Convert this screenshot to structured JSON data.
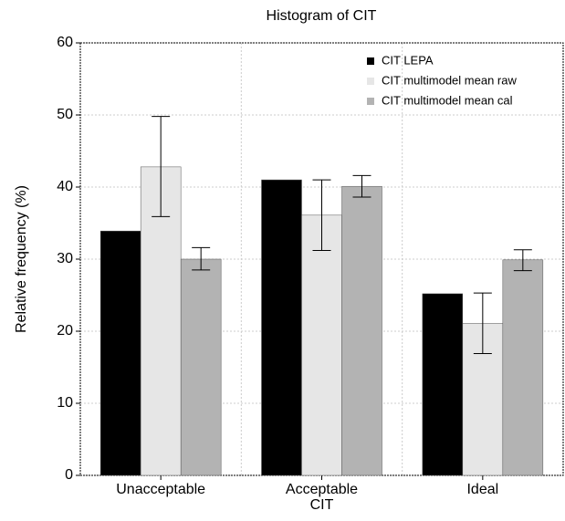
{
  "chart_data": {
    "type": "bar",
    "title": "Histogram of CIT",
    "ylabel": "Relative frequency (%)",
    "categories": [
      "Unacceptable",
      "Acceptable\nCIT",
      "Ideal"
    ],
    "series": [
      {
        "name": "CIT LEPA",
        "color": "#000000",
        "values": [
          33.9,
          41.0,
          25.2
        ]
      },
      {
        "name": "CIT multimodel mean raw",
        "color": "#e6e6e6",
        "values": [
          42.8,
          36.1,
          21.1
        ],
        "error_low": [
          35.9,
          31.2,
          16.9
        ],
        "error_high": [
          49.8,
          41.0,
          25.3
        ]
      },
      {
        "name": "CIT multimodel mean cal",
        "color": "#b3b3b3",
        "values": [
          30.0,
          40.1,
          29.9
        ],
        "error_low": [
          28.5,
          38.6,
          28.4
        ],
        "error_high": [
          31.6,
          41.6,
          31.3
        ]
      }
    ],
    "ylim": [
      0,
      60
    ],
    "yticks": [
      0,
      10,
      20,
      30,
      40,
      50,
      60
    ],
    "grid": true,
    "legend": "top-right"
  }
}
